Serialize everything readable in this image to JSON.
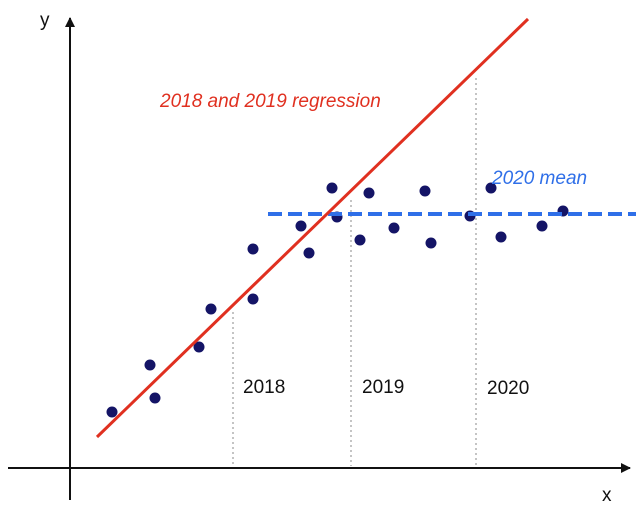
{
  "colors": {
    "axis": "#111111",
    "regression": "#e03020",
    "mean": "#2f6fe8",
    "points": "#141466",
    "divider": "#888888"
  },
  "labels": {
    "y_axis": "y",
    "x_axis": "x",
    "regression": "2018 and 2019 regression",
    "mean": "2020 mean"
  },
  "years": [
    "2018",
    "2019",
    "2020"
  ]
}
